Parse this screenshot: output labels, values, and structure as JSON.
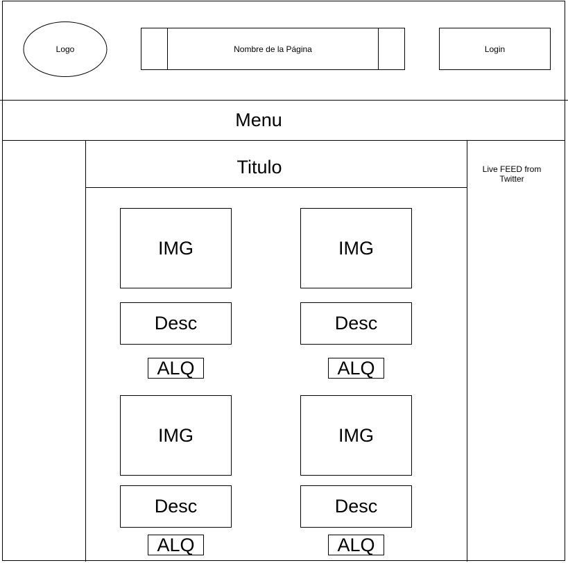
{
  "header": {
    "logo_label": "Logo",
    "page_name_label": "Nombre de la Página",
    "login_label": "Login"
  },
  "menu": {
    "label": "Menu"
  },
  "content": {
    "title": "Titulo",
    "cards": [
      {
        "img_label": "IMG",
        "desc_label": "Desc",
        "alq_label": "ALQ"
      },
      {
        "img_label": "IMG",
        "desc_label": "Desc",
        "alq_label": "ALQ"
      },
      {
        "img_label": "IMG",
        "desc_label": "Desc",
        "alq_label": "ALQ"
      },
      {
        "img_label": "IMG",
        "desc_label": "Desc",
        "alq_label": "ALQ"
      }
    ]
  },
  "sidebar": {
    "feed_label": "Live FEED from Twitter"
  }
}
